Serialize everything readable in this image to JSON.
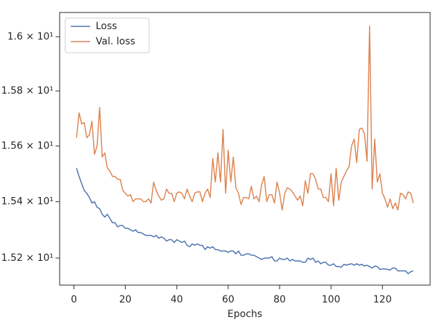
{
  "chart_data": {
    "type": "line",
    "xlabel": "Epochs",
    "ylog": true,
    "legend": "upper left",
    "x": [
      1,
      2,
      3,
      4,
      5,
      6,
      7,
      8,
      9,
      10,
      11,
      12,
      13,
      14,
      15,
      16,
      17,
      18,
      19,
      20,
      21,
      22,
      23,
      24,
      25,
      26,
      27,
      28,
      29,
      30,
      31,
      32,
      33,
      34,
      35,
      36,
      37,
      38,
      39,
      40,
      41,
      42,
      43,
      44,
      45,
      46,
      47,
      48,
      49,
      50,
      51,
      52,
      53,
      54,
      55,
      56,
      57,
      58,
      59,
      60,
      61,
      62,
      63,
      64,
      65,
      66,
      67,
      68,
      69,
      70,
      71,
      72,
      73,
      74,
      75,
      76,
      77,
      78,
      79,
      80,
      81,
      82,
      83,
      84,
      85,
      86,
      87,
      88,
      89,
      90,
      91,
      92,
      93,
      94,
      95,
      96,
      97,
      98,
      99,
      100,
      101,
      102,
      103,
      104,
      105,
      106,
      107,
      108,
      109,
      110,
      111,
      112,
      113,
      114,
      115,
      116,
      117,
      118,
      119,
      120,
      121,
      122,
      123,
      124,
      125,
      126,
      127,
      128,
      129,
      130,
      131,
      132
    ],
    "series": [
      {
        "name": "Loss",
        "color": "#4c72b0",
        "values": [
          15.52,
          15.49,
          15.465,
          15.44,
          15.43,
          15.415,
          15.395,
          15.4,
          15.38,
          15.375,
          15.355,
          15.345,
          15.355,
          15.34,
          15.325,
          15.325,
          15.31,
          15.315,
          15.315,
          15.305,
          15.305,
          15.3,
          15.295,
          15.3,
          15.29,
          15.29,
          15.285,
          15.28,
          15.28,
          15.28,
          15.275,
          15.28,
          15.27,
          15.275,
          15.27,
          15.26,
          15.265,
          15.265,
          15.255,
          15.265,
          15.26,
          15.255,
          15.26,
          15.245,
          15.24,
          15.25,
          15.245,
          15.25,
          15.245,
          15.245,
          15.23,
          15.24,
          15.235,
          15.24,
          15.23,
          15.23,
          15.225,
          15.225,
          15.225,
          15.22,
          15.225,
          15.225,
          15.215,
          15.225,
          15.21,
          15.21,
          15.215,
          15.215,
          15.21,
          15.21,
          15.205,
          15.2,
          15.195,
          15.2,
          15.2,
          15.2,
          15.205,
          15.19,
          15.19,
          15.2,
          15.195,
          15.195,
          15.2,
          15.19,
          15.195,
          15.19,
          15.19,
          15.19,
          15.185,
          15.185,
          15.2,
          15.195,
          15.2,
          15.185,
          15.19,
          15.18,
          15.185,
          15.185,
          15.175,
          15.175,
          15.18,
          15.17,
          15.17,
          15.168,
          15.178,
          15.175,
          15.178,
          15.18,
          15.175,
          15.18,
          15.175,
          15.178,
          15.172,
          15.175,
          15.17,
          15.165,
          15.172,
          15.17,
          15.16,
          15.162,
          15.162,
          15.16,
          15.158,
          15.165,
          15.165,
          15.155,
          15.155,
          15.155,
          15.155,
          15.145,
          15.152,
          15.155
        ]
      },
      {
        "name": "Val. loss",
        "color": "#dd8452",
        "values": [
          15.63,
          15.72,
          15.68,
          15.685,
          15.63,
          15.64,
          15.69,
          15.57,
          15.6,
          15.74,
          15.56,
          15.575,
          15.52,
          15.51,
          15.49,
          15.49,
          15.48,
          15.48,
          15.44,
          15.43,
          15.42,
          15.425,
          15.4,
          15.41,
          15.41,
          15.41,
          15.4,
          15.4,
          15.41,
          15.395,
          15.47,
          15.44,
          15.42,
          15.405,
          15.41,
          15.445,
          15.43,
          15.43,
          15.4,
          15.43,
          15.435,
          15.43,
          15.41,
          15.445,
          15.42,
          15.4,
          15.43,
          15.435,
          15.435,
          15.4,
          15.43,
          15.445,
          15.415,
          15.555,
          15.47,
          15.575,
          15.47,
          15.66,
          15.43,
          15.585,
          15.47,
          15.56,
          15.45,
          15.43,
          15.39,
          15.415,
          15.415,
          15.41,
          15.455,
          15.41,
          15.42,
          15.4,
          15.46,
          15.49,
          15.4,
          15.425,
          15.425,
          15.395,
          15.47,
          15.43,
          15.37,
          15.43,
          15.45,
          15.445,
          15.435,
          15.42,
          15.405,
          15.42,
          15.385,
          15.475,
          15.43,
          15.5,
          15.5,
          15.48,
          15.445,
          15.445,
          15.415,
          15.415,
          15.4,
          15.5,
          15.385,
          15.52,
          15.405,
          15.47,
          15.49,
          15.51,
          15.525,
          15.6,
          15.625,
          15.54,
          15.66,
          15.665,
          15.645,
          15.545,
          16.04,
          15.445,
          15.625,
          15.47,
          15.5,
          15.43,
          15.41,
          15.38,
          15.41,
          15.375,
          15.395,
          15.37,
          15.43,
          15.425,
          15.41,
          15.435,
          15.43,
          15.395
        ]
      }
    ],
    "xlim": [
      -5.55,
      138.55
    ],
    "xticks": [
      0,
      20,
      40,
      60,
      80,
      100,
      120
    ],
    "ylim": [
      15.105,
      16.09
    ],
    "yticks": [
      {
        "value": 15.2,
        "label": "1.52 × 10¹"
      },
      {
        "value": 15.4,
        "label": "1.54 × 10¹"
      },
      {
        "value": 15.6,
        "label": "1.56 × 10¹"
      },
      {
        "value": 15.8,
        "label": "1.58 × 10¹"
      },
      {
        "value": 16,
        "label": "1.6 × 10¹"
      }
    ]
  }
}
